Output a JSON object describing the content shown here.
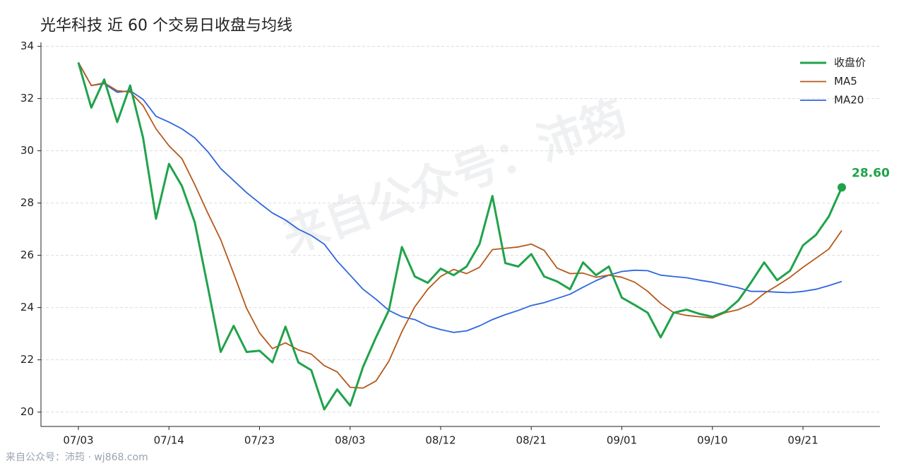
{
  "chart_data": {
    "type": "line",
    "title": "光华科技 近 60 个交易日收盘与均线",
    "watermark": "来自公众号：沛筠",
    "footer": "来自公众号：沛筠 · wj868.com",
    "categories": [
      "07/03",
      null,
      null,
      null,
      null,
      null,
      null,
      "07/14",
      null,
      null,
      null,
      null,
      null,
      null,
      "07/23",
      null,
      null,
      null,
      null,
      null,
      null,
      "08/03",
      null,
      null,
      null,
      null,
      null,
      null,
      "08/12",
      null,
      null,
      null,
      null,
      null,
      null,
      "08/21",
      null,
      null,
      null,
      null,
      null,
      null,
      "09/01",
      null,
      null,
      null,
      null,
      null,
      null,
      "09/10",
      null,
      null,
      null,
      null,
      null,
      null,
      "09/21",
      null,
      null,
      null
    ],
    "series": [
      {
        "name": "收盘价",
        "color": "#1fa34a",
        "values": [
          33.38,
          31.65,
          32.73,
          31.1,
          32.5,
          30.5,
          27.4,
          29.5,
          28.65,
          27.25,
          24.8,
          22.3,
          23.3,
          22.3,
          22.35,
          21.9,
          23.27,
          21.9,
          21.6,
          20.1,
          20.87,
          20.25,
          21.73,
          22.86,
          23.9,
          26.32,
          25.19,
          24.95,
          25.49,
          25.24,
          25.57,
          26.43,
          28.27,
          25.7,
          25.57,
          26.05,
          25.19,
          25.0,
          24.7,
          25.73,
          25.24,
          25.57,
          24.38,
          24.1,
          23.8,
          22.86,
          23.8,
          23.92,
          23.76,
          23.65,
          23.84,
          24.27,
          24.97,
          25.73,
          25.05,
          25.41,
          26.38,
          26.78,
          27.49,
          28.6
        ],
        "value_labels": [
          null,
          null,
          null,
          null,
          null,
          null,
          null,
          null,
          null,
          null,
          null,
          null,
          null,
          null,
          null,
          null,
          null,
          null,
          null,
          null,
          null,
          null,
          null,
          null,
          null,
          null,
          null,
          null,
          null,
          null,
          null,
          null,
          null,
          null,
          null,
          null,
          null,
          null,
          null,
          null,
          null,
          null,
          null,
          null,
          null,
          null,
          null,
          null,
          null,
          null,
          null,
          null,
          null,
          null,
          null,
          null,
          null,
          null,
          null,
          "28.60"
        ]
      },
      {
        "name": "MA5",
        "color": "#b5591a",
        "values": [
          33.38,
          32.5,
          32.6,
          32.3,
          32.25,
          31.73,
          30.84,
          30.19,
          29.7,
          28.7,
          27.62,
          26.6,
          25.3,
          23.97,
          23.03,
          22.43,
          22.65,
          22.38,
          22.22,
          21.78,
          21.54,
          20.95,
          20.92,
          21.19,
          21.95,
          23.08,
          24.03,
          24.7,
          25.19,
          25.46,
          25.3,
          25.54,
          26.22,
          26.27,
          26.32,
          26.43,
          26.19,
          25.51,
          25.3,
          25.32,
          25.16,
          25.24,
          25.16,
          24.97,
          24.62,
          24.16,
          23.81,
          23.7,
          23.65,
          23.6,
          23.81,
          23.92,
          24.14,
          24.54,
          24.84,
          25.16,
          25.54,
          25.89,
          26.24,
          26.95
        ]
      },
      {
        "name": "MA20",
        "color": "#2f66e0",
        "values": [
          33.38,
          32.5,
          32.57,
          32.24,
          32.3,
          31.97,
          31.32,
          31.1,
          30.84,
          30.49,
          29.97,
          29.32,
          28.86,
          28.4,
          28.0,
          27.62,
          27.35,
          27.0,
          26.76,
          26.43,
          25.78,
          25.24,
          24.7,
          24.32,
          23.89,
          23.65,
          23.54,
          23.3,
          23.16,
          23.05,
          23.11,
          23.3,
          23.54,
          23.73,
          23.89,
          24.08,
          24.19,
          24.35,
          24.51,
          24.78,
          25.03,
          25.24,
          25.38,
          25.43,
          25.41,
          25.24,
          25.19,
          25.14,
          25.05,
          24.97,
          24.86,
          24.76,
          24.62,
          24.62,
          24.59,
          24.57,
          24.62,
          24.7,
          24.84,
          25.0
        ]
      }
    ],
    "ylim": [
      19.45,
      34.15
    ],
    "yticks": [
      20,
      22,
      24,
      26,
      28,
      30,
      32,
      34
    ],
    "grid": true,
    "legend": "upper right"
  }
}
